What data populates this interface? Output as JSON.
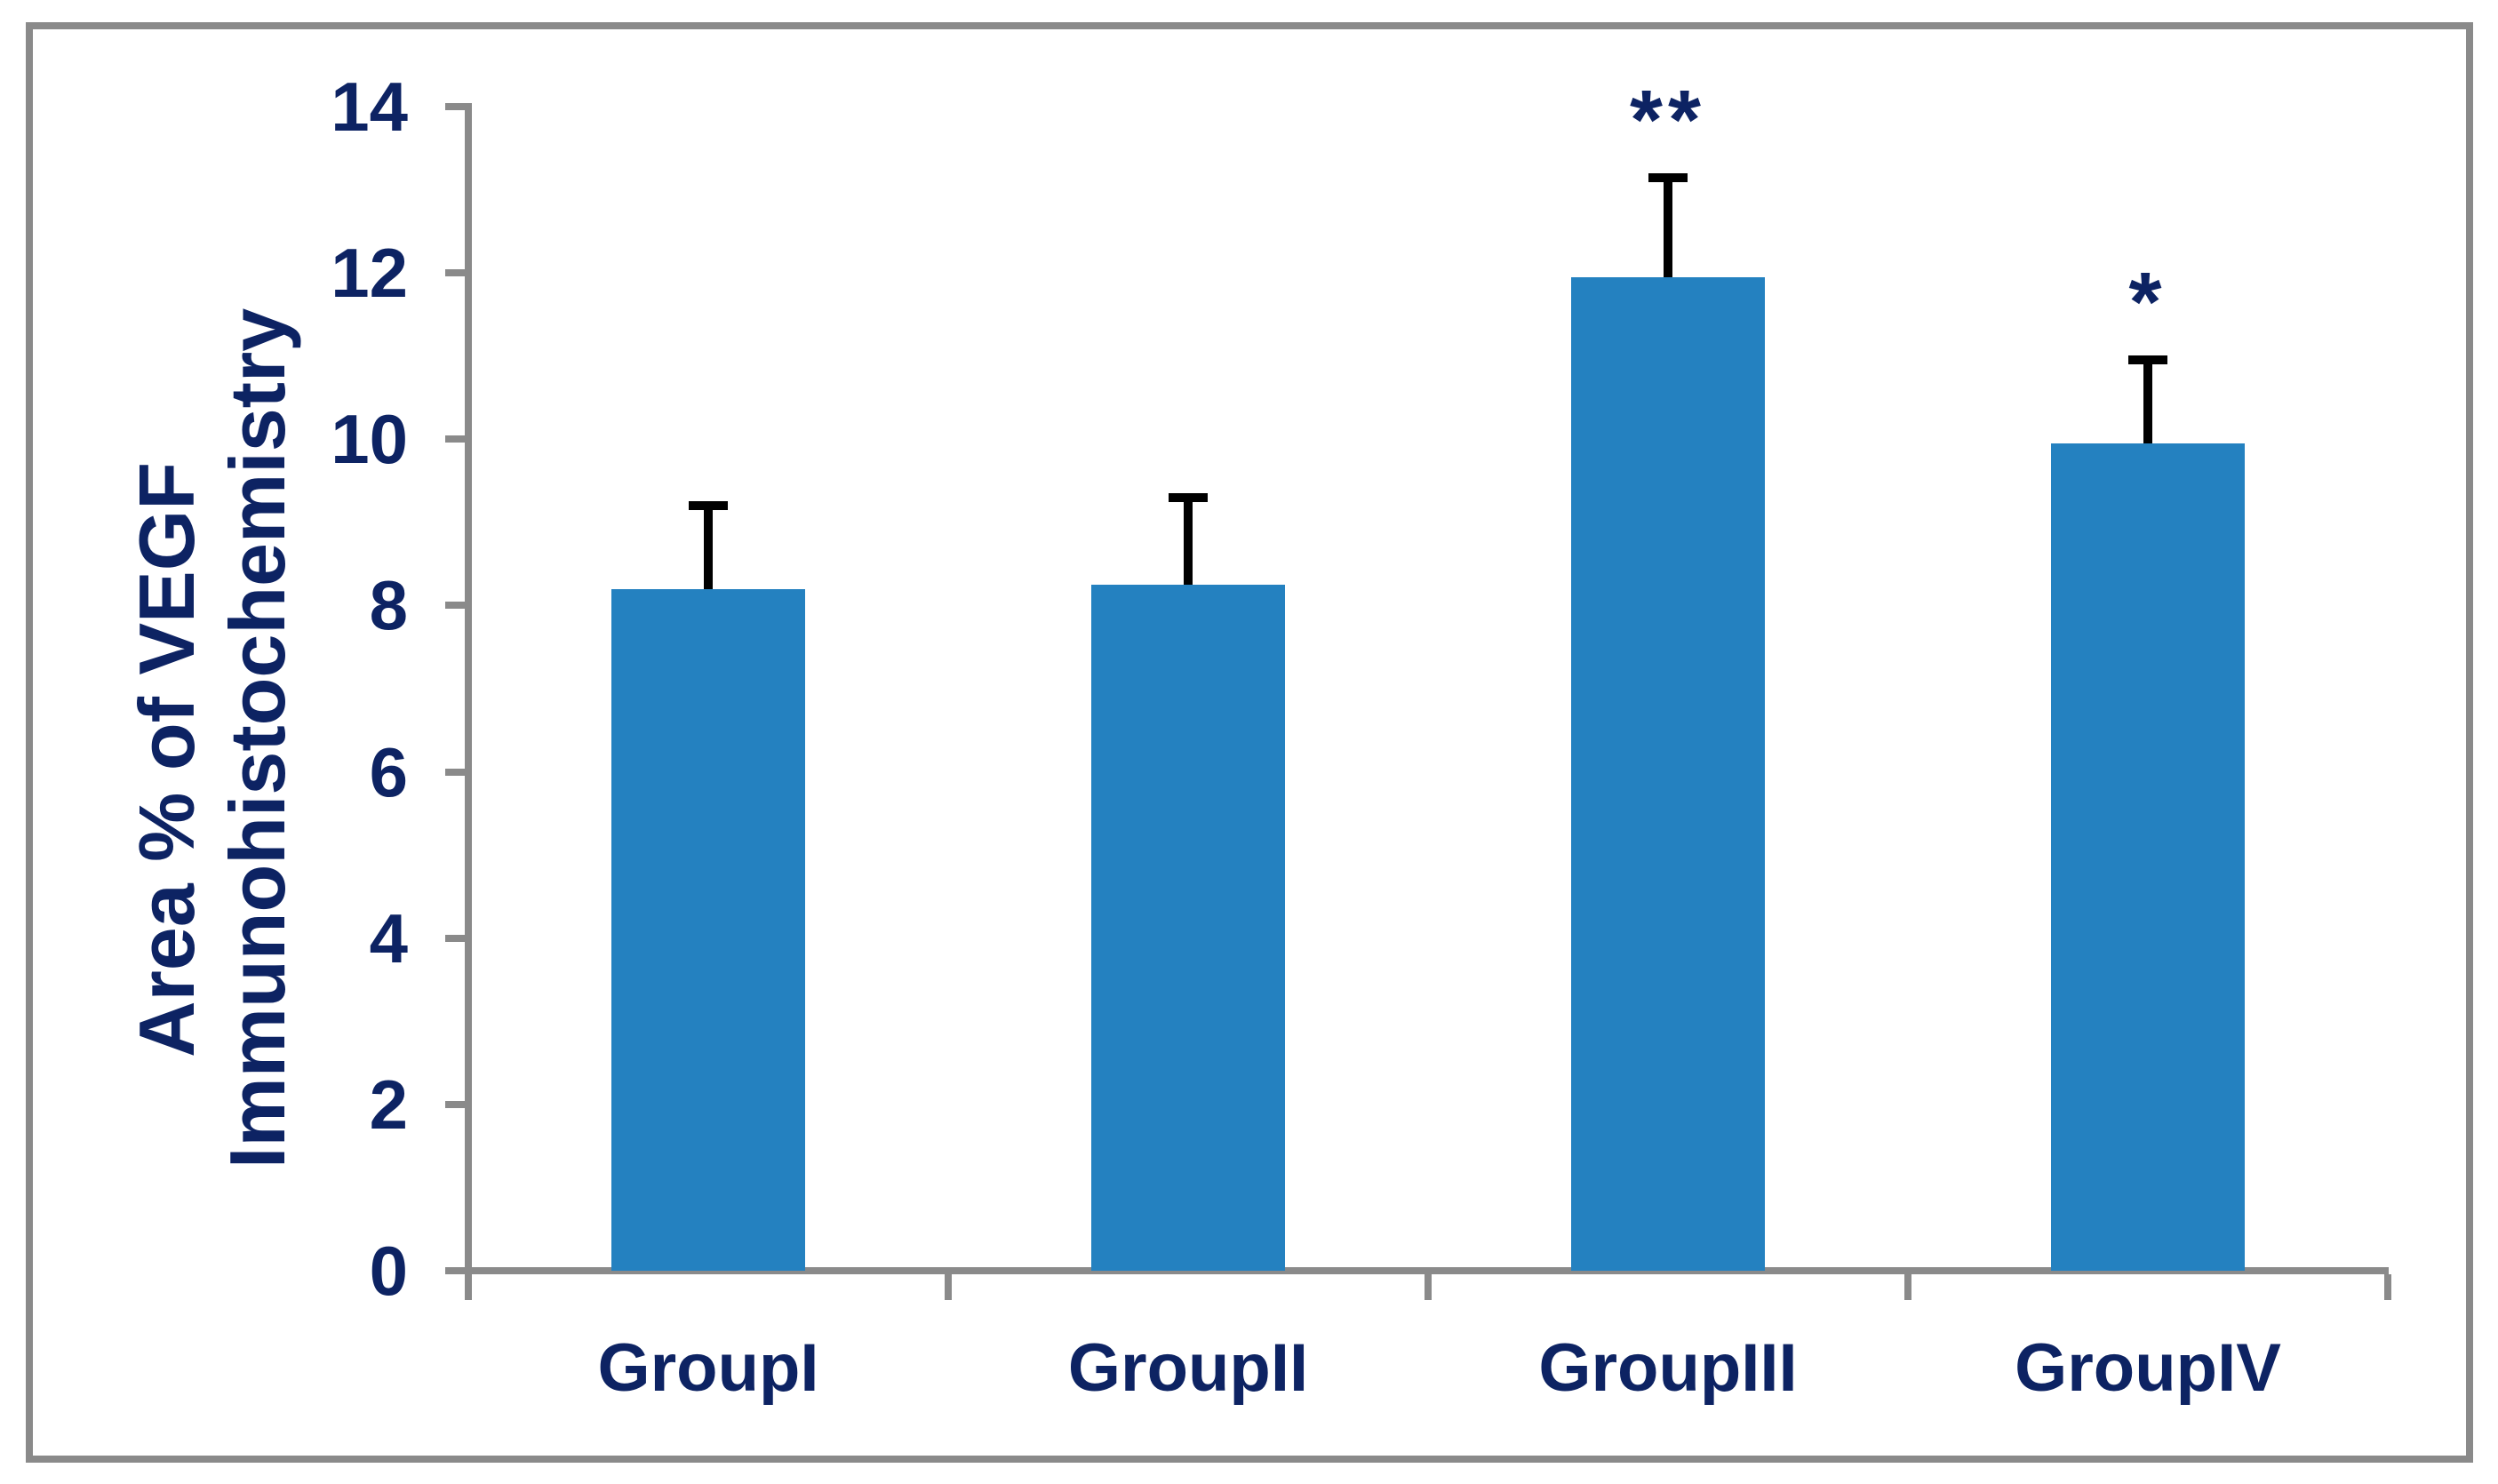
{
  "figure": {
    "background_color": "#ffffff",
    "frame_color": "#8a8a8a"
  },
  "chart_data": {
    "type": "bar",
    "title": "",
    "ylabel_lines": [
      "Area % of VEGF",
      "Immunohistochemistry"
    ],
    "xlabel": "",
    "categories": [
      "GroupI",
      "GroupII",
      "GroupIII",
      "GroupIV"
    ],
    "values": [
      8.2,
      8.25,
      11.95,
      9.95
    ],
    "errors": [
      1.0,
      1.05,
      1.2,
      1.0
    ],
    "error_direction": "plus",
    "significance": [
      "",
      "",
      "**",
      "*"
    ],
    "ylim": [
      0,
      14
    ],
    "yticks": [
      0,
      2,
      4,
      6,
      8,
      10,
      12,
      14
    ],
    "grid": false,
    "legend": null,
    "bar_color": "#2481c0",
    "error_bar_color": "#000000",
    "text_color": "#0d2363",
    "axis_color": "#8a8a8a"
  }
}
